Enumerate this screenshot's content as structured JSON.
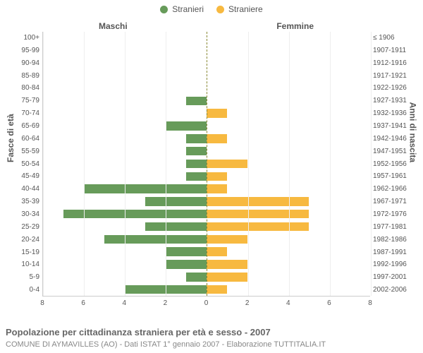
{
  "chart": {
    "type": "population-pyramid",
    "background_color": "#ffffff",
    "grid_color": "#eeeeee",
    "axis_color": "#cccccc",
    "center_line_color": "#888833",
    "center_line_dash": "3,3",
    "text_color": "#555555",
    "legend": {
      "items": [
        {
          "label": "Stranieri",
          "color": "#679b5a"
        },
        {
          "label": "Straniere",
          "color": "#f7b940"
        }
      ]
    },
    "side_titles": {
      "left": "Maschi",
      "right": "Femmine"
    },
    "yaxis_left_label": "Fasce di età",
    "yaxis_right_label": "Anni di nascita",
    "x_max": 8,
    "x_ticks": [
      0,
      2,
      4,
      6,
      8
    ],
    "bar_height_ratio": 0.7,
    "label_fontsize": 10,
    "title_fontsize": 12,
    "age_groups": [
      {
        "age": "0-4",
        "birth": "2002-2006",
        "male": 4,
        "female": 1
      },
      {
        "age": "5-9",
        "birth": "1997-2001",
        "male": 1,
        "female": 2
      },
      {
        "age": "10-14",
        "birth": "1992-1996",
        "male": 2,
        "female": 2
      },
      {
        "age": "15-19",
        "birth": "1987-1991",
        "male": 2,
        "female": 1
      },
      {
        "age": "20-24",
        "birth": "1982-1986",
        "male": 5,
        "female": 2
      },
      {
        "age": "25-29",
        "birth": "1977-1981",
        "male": 3,
        "female": 5
      },
      {
        "age": "30-34",
        "birth": "1972-1976",
        "male": 7,
        "female": 5
      },
      {
        "age": "35-39",
        "birth": "1967-1971",
        "male": 3,
        "female": 5
      },
      {
        "age": "40-44",
        "birth": "1962-1966",
        "male": 6,
        "female": 1
      },
      {
        "age": "45-49",
        "birth": "1957-1961",
        "male": 1,
        "female": 1
      },
      {
        "age": "50-54",
        "birth": "1952-1956",
        "male": 1,
        "female": 2
      },
      {
        "age": "55-59",
        "birth": "1947-1951",
        "male": 1,
        "female": 0
      },
      {
        "age": "60-64",
        "birth": "1942-1946",
        "male": 1,
        "female": 1
      },
      {
        "age": "65-69",
        "birth": "1937-1941",
        "male": 2,
        "female": 0
      },
      {
        "age": "70-74",
        "birth": "1932-1936",
        "male": 0,
        "female": 1
      },
      {
        "age": "75-79",
        "birth": "1927-1931",
        "male": 1,
        "female": 0
      },
      {
        "age": "80-84",
        "birth": "1922-1926",
        "male": 0,
        "female": 0
      },
      {
        "age": "85-89",
        "birth": "1917-1921",
        "male": 0,
        "female": 0
      },
      {
        "age": "90-94",
        "birth": "1912-1916",
        "male": 0,
        "female": 0
      },
      {
        "age": "95-99",
        "birth": "1907-1911",
        "male": 0,
        "female": 0
      },
      {
        "age": "100+",
        "birth": "≤ 1906",
        "male": 0,
        "female": 0
      }
    ],
    "colors": {
      "male": "#679b5a",
      "female": "#f7b940"
    },
    "caption": "Popolazione per cittadinanza straniera per età e sesso - 2007",
    "subcaption": "COMUNE DI AYMAVILLES (AO) - Dati ISTAT 1° gennaio 2007 - Elaborazione TUTTITALIA.IT"
  }
}
